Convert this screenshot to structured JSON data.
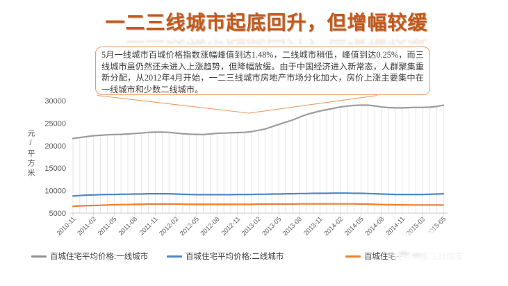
{
  "title": {
    "text": "一二三线城市起底回升，但增幅较缓",
    "color": "#c2591b"
  },
  "annotation": {
    "text": "5月一线城市百城价格指数涨幅峰值到达1.48%，二线城市稍低，峰值到达0.25%，而三线城市虽仍然还未进入上涨趋势，但降幅放缓。由于中国经济进入新常态，人群聚集重新分配，从2012年4月开始，一二三线城市房地产市场分化加大，房价上涨主要集中在一线城市和少数二线城市。",
    "border_color": "#ea9a62"
  },
  "chart_data": {
    "type": "line",
    "ylabel": "元/平方米",
    "ylim": [
      5000,
      30000
    ],
    "y_ticks": [
      5000,
      10000,
      15000,
      20000,
      25000,
      30000
    ],
    "x_tick_labels": [
      "2010-11",
      "2011-02",
      "2011-05",
      "2011-08",
      "2011-11",
      "2012-02",
      "2012-05",
      "2012-08",
      "2012-11",
      "2013-02",
      "2013-05",
      "2013-08",
      "2013-11",
      "2014-02",
      "2014-05",
      "2014-08",
      "2014-11",
      "2015-02",
      "2015-05"
    ],
    "x_tick_every_n_points": 3,
    "points_count": 55,
    "grid": "vertical-drop-lines",
    "legend_position": "bottom",
    "series": [
      {
        "name": "百城住宅平均价格:一线城市",
        "color": "#9c9c9c",
        "values": [
          21600,
          21800,
          22000,
          22200,
          22300,
          22400,
          22450,
          22500,
          22600,
          22700,
          22800,
          22950,
          23000,
          23000,
          22950,
          22800,
          22650,
          22550,
          22500,
          22450,
          22600,
          22750,
          22800,
          22850,
          22900,
          22950,
          23100,
          23400,
          23700,
          24200,
          24700,
          25200,
          25700,
          26300,
          26900,
          27300,
          27700,
          28000,
          28300,
          28600,
          28800,
          28950,
          29000,
          29000,
          28850,
          28600,
          28450,
          28400,
          28400,
          28450,
          28500,
          28500,
          28550,
          28700,
          29000
        ]
      },
      {
        "name": "百城住宅平均价格:二线城市",
        "color": "#4e86c5",
        "values": [
          8800,
          8900,
          9000,
          9050,
          9100,
          9150,
          9150,
          9200,
          9200,
          9250,
          9250,
          9300,
          9300,
          9300,
          9300,
          9250,
          9200,
          9150,
          9100,
          9100,
          9100,
          9100,
          9100,
          9100,
          9150,
          9150,
          9150,
          9200,
          9200,
          9250,
          9250,
          9300,
          9300,
          9350,
          9350,
          9400,
          9400,
          9400,
          9450,
          9450,
          9450,
          9400,
          9400,
          9350,
          9300,
          9250,
          9200,
          9150,
          9150,
          9150,
          9150,
          9150,
          9200,
          9250,
          9300
        ]
      },
      {
        "name": "百城住宅平均价格:三线城市",
        "color": "#ed7d31",
        "values": [
          6500,
          6600,
          6650,
          6700,
          6750,
          6800,
          6850,
          6900,
          6900,
          6950,
          6950,
          7000,
          7000,
          7000,
          7000,
          7000,
          6980,
          6960,
          6950,
          6950,
          6950,
          6950,
          6950,
          6950,
          6950,
          6950,
          6950,
          7000,
          7000,
          7000,
          7000,
          7000,
          7000,
          7050,
          7050,
          7050,
          7050,
          7050,
          7050,
          7050,
          7050,
          7050,
          7000,
          7000,
          6950,
          6900,
          6870,
          6850,
          6830,
          6820,
          6800,
          6800,
          6800,
          6800,
          6800
        ]
      }
    ]
  },
  "legend": {
    "items": [
      {
        "label": "百城住宅平均价格:一线城市",
        "color": "#8f8f8f"
      },
      {
        "label": "百城住宅平均价格:二线城市",
        "color": "#4e86c5"
      },
      {
        "label": "百城住宅平均价格:三线城市",
        "color": "#ed7d31"
      }
    ]
  },
  "colors": {
    "axis_text": "#595959",
    "axis_line": "#c8c8c8",
    "drop_line": "#dcdcdc",
    "callout_border": "#ea9a62"
  }
}
